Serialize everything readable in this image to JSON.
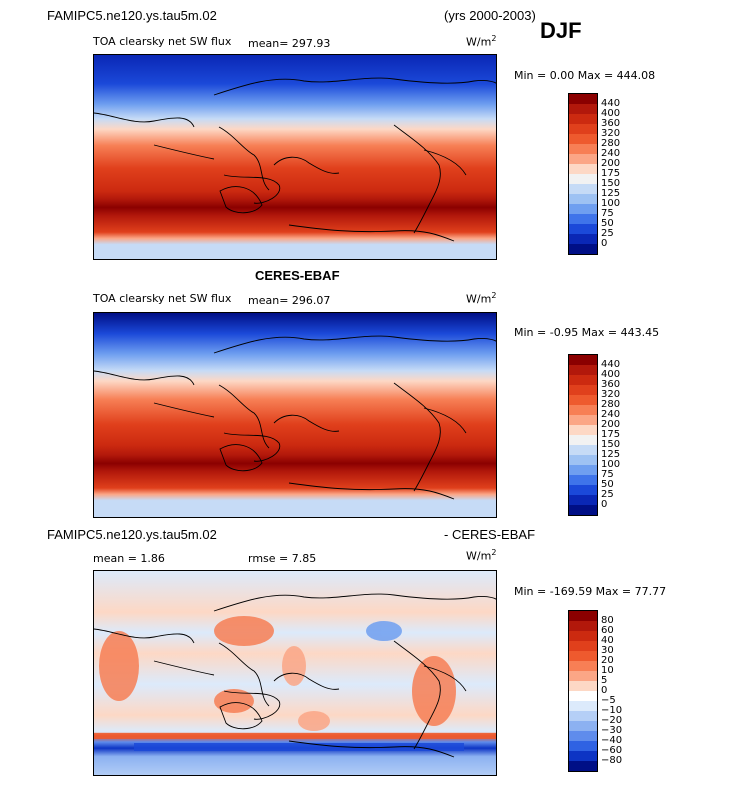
{
  "header": {
    "case_name": "FAMIPC5.ne120.ys.tau5m.02",
    "years": "(yrs 2000-2003)",
    "season": "DJF"
  },
  "panels": [
    {
      "id": "model",
      "title": "",
      "variable": "TOA clearsky net SW flux",
      "stat_left": "mean= 297.93",
      "stat_right": "",
      "units_base": "W/m",
      "units_exp": "2",
      "minmax": "Min =    0.00  Max = 444.08",
      "colorbar": {
        "labels": [
          "440",
          "400",
          "360",
          "320",
          "280",
          "240",
          "200",
          "175",
          "150",
          "125",
          "100",
          "75",
          "50",
          "25",
          "0"
        ],
        "colors": [
          "#8b0000",
          "#b2180b",
          "#cc2a10",
          "#e0401c",
          "#ee5a2e",
          "#f77f55",
          "#fba686",
          "#fdd8c5",
          "#f2f2f2",
          "#c6dbf6",
          "#9ec2f3",
          "#6f9ff0",
          "#3f74ea",
          "#1b49d9",
          "#0a27b5",
          "#000f86"
        ]
      }
    },
    {
      "id": "obs",
      "title": "CERES-EBAF",
      "variable": "TOA clearsky net SW flux",
      "stat_left": "mean= 296.07",
      "stat_right": "",
      "units_base": "W/m",
      "units_exp": "2",
      "minmax": "Min =  -0.95  Max = 443.45",
      "colorbar": {
        "labels": [
          "440",
          "400",
          "360",
          "320",
          "280",
          "240",
          "200",
          "175",
          "150",
          "125",
          "100",
          "75",
          "50",
          "25",
          "0"
        ],
        "colors": [
          "#8b0000",
          "#b2180b",
          "#cc2a10",
          "#e0401c",
          "#ee5a2e",
          "#f77f55",
          "#fba686",
          "#fdd8c5",
          "#f2f2f2",
          "#c6dbf6",
          "#9ec2f3",
          "#6f9ff0",
          "#3f74ea",
          "#1b49d9",
          "#0a27b5",
          "#000f86"
        ]
      }
    },
    {
      "id": "diff",
      "title_left": "FAMIPC5.ne120.ys.tau5m.02",
      "title_right": "- CERES-EBAF",
      "stat_left": "mean =    1.86",
      "stat_right": "rmse =    7.85",
      "units_base": "W/m",
      "units_exp": "2",
      "minmax": "Min = -169.59  Max =  77.77",
      "colorbar": {
        "labels": [
          "80",
          "60",
          "40",
          "30",
          "20",
          "10",
          "5",
          "0",
          "−5",
          "−10",
          "−20",
          "−30",
          "−40",
          "−60",
          "−80"
        ],
        "colors": [
          "#8b0000",
          "#b2180b",
          "#cc2a10",
          "#e0401c",
          "#ee5a2e",
          "#f77f55",
          "#fba686",
          "#fdd8c5",
          "#ffffff",
          "#dceafb",
          "#b5cff6",
          "#8cb1f1",
          "#5f8cec",
          "#2f62e3",
          "#0d34c4",
          "#000f86"
        ]
      }
    }
  ],
  "chart_data": [
    {
      "type": "heatmap",
      "title": "TOA clearsky net SW flux",
      "units": "W/m2",
      "mean": 297.93,
      "min": 0.0,
      "max": 444.08,
      "levels": [
        0,
        25,
        50,
        75,
        100,
        125,
        150,
        175,
        200,
        240,
        280,
        320,
        360,
        400,
        440
      ]
    },
    {
      "type": "heatmap",
      "title": "CERES-EBAF",
      "units": "W/m2",
      "mean": 296.07,
      "min": -0.95,
      "max": 443.45,
      "levels": [
        0,
        25,
        50,
        75,
        100,
        125,
        150,
        175,
        200,
        240,
        280,
        320,
        360,
        400,
        440
      ]
    },
    {
      "type": "heatmap",
      "title": "FAMIPC5.ne120.ys.tau5m.02 - CERES-EBAF",
      "units": "W/m2",
      "mean": 1.86,
      "rmse": 7.85,
      "min": -169.59,
      "max": 77.77,
      "levels": [
        -80,
        -60,
        -40,
        -30,
        -20,
        -10,
        -5,
        0,
        5,
        10,
        20,
        30,
        40,
        60,
        80
      ]
    }
  ]
}
